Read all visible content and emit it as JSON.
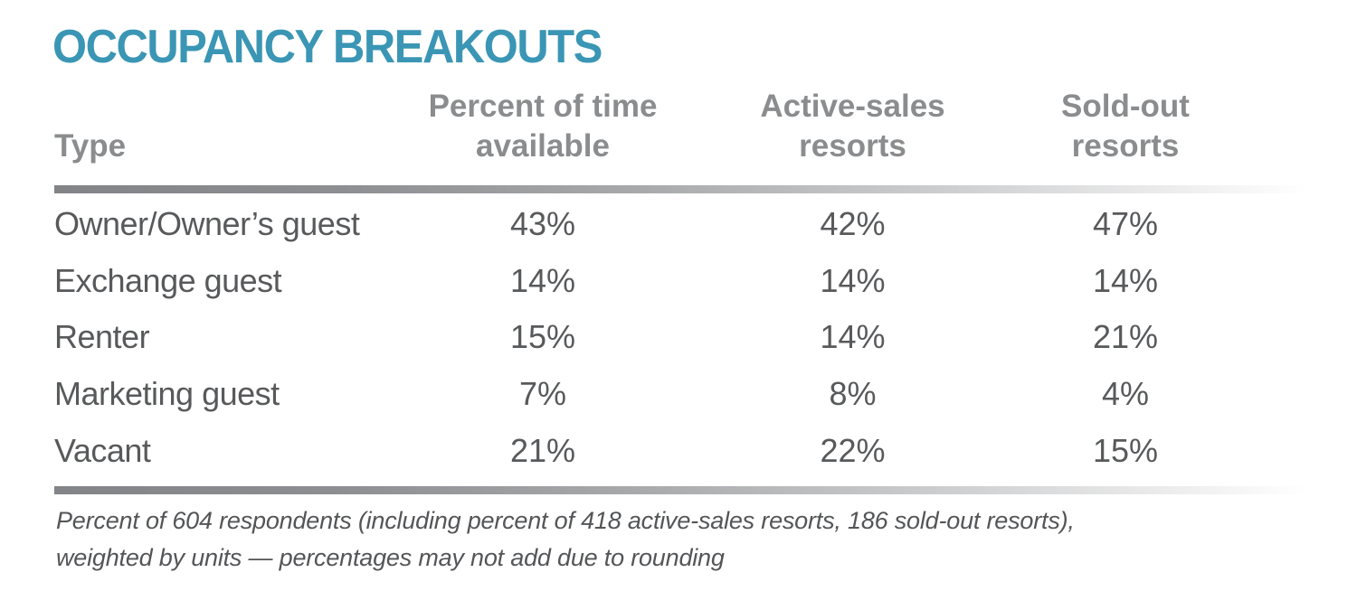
{
  "figure": {
    "title": "OCCUPANCY BREAKOUTS",
    "headers": {
      "type": "Type",
      "col2": [
        "Percent of time",
        "available"
      ],
      "col3": [
        "Active-sales",
        "resorts"
      ],
      "col4": [
        "Sold-out",
        "resorts"
      ]
    },
    "rows": [
      {
        "label": "Owner/Owner’s guest",
        "values": [
          "43%",
          "42%",
          "47%"
        ]
      },
      {
        "label": "Exchange guest",
        "values": [
          "14%",
          "14%",
          "14%"
        ]
      },
      {
        "label": "Renter",
        "values": [
          "15%",
          "14%",
          "21%"
        ]
      },
      {
        "label": "Marketing guest",
        "values": [
          "7%",
          "8%",
          "4%"
        ]
      },
      {
        "label": "Vacant",
        "values": [
          "21%",
          "22%",
          "15%"
        ]
      }
    ],
    "footnote_line1": "Percent of 604 respondents (including percent of 418 active-sales resorts, 186 sold-out resorts),",
    "footnote_line2": "weighted by units — percentages may not add due to rounding"
  },
  "colors": {
    "accent_teal": "#3a96b4",
    "header_gray": "#8a8c8e",
    "data_gray": "#58595b",
    "footnote_gray": "#545557",
    "rule_gradient_start": "#828487",
    "rule_gradient_end": "#ffffff"
  },
  "chart_data": {
    "type": "table",
    "title": "OCCUPANCY BREAKOUTS",
    "categories": [
      "Owner/Owner’s guest",
      "Exchange guest",
      "Renter",
      "Marketing guest",
      "Vacant"
    ],
    "series": [
      {
        "name": "Percent of time available",
        "values": [
          43,
          14,
          15,
          7,
          21
        ]
      },
      {
        "name": "Active-sales resorts",
        "values": [
          42,
          14,
          14,
          8,
          22
        ]
      },
      {
        "name": "Sold-out resorts",
        "values": [
          47,
          14,
          21,
          4,
          15
        ]
      }
    ],
    "unit": "%",
    "footnote": "Percent of 604 respondents (including percent of 418 active-sales resorts, 186 sold-out resorts), weighted by units — percentages may not add due to rounding"
  }
}
